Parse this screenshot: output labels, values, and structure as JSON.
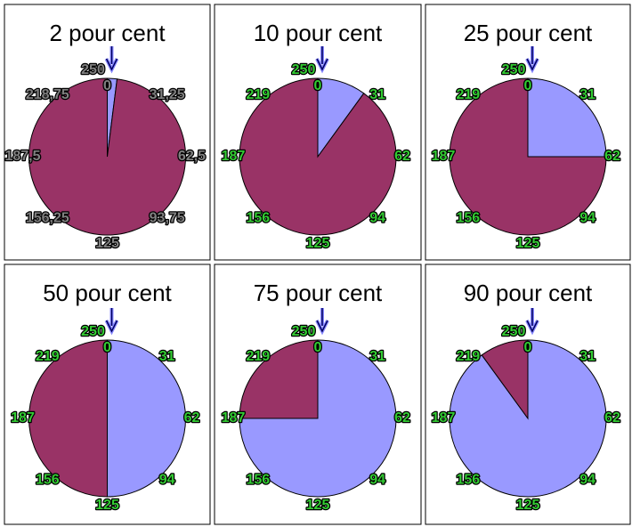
{
  "chart_data": [
    {
      "type": "pie",
      "title": "2 pour cent",
      "values": [
        2,
        98
      ],
      "colors": [
        "#9999ff",
        "#993366"
      ],
      "dial_labels": [
        "0",
        "31,25",
        "62,5",
        "93,75",
        "125",
        "156,25",
        "187,5",
        "218,75",
        "250"
      ],
      "label_color": "#808080"
    },
    {
      "type": "pie",
      "title": "10 pour cent",
      "values": [
        10,
        90
      ],
      "colors": [
        "#9999ff",
        "#993366"
      ],
      "dial_labels": [
        "0",
        "31",
        "62",
        "94",
        "125",
        "156",
        "187",
        "219",
        "250"
      ],
      "label_color": "#33cc33"
    },
    {
      "type": "pie",
      "title": "25 pour cent",
      "values": [
        25,
        75
      ],
      "colors": [
        "#9999ff",
        "#993366"
      ],
      "dial_labels": [
        "0",
        "31",
        "62",
        "94",
        "125",
        "156",
        "187",
        "219",
        "250"
      ],
      "label_color": "#33cc33"
    },
    {
      "type": "pie",
      "title": "50 pour cent",
      "values": [
        50,
        50
      ],
      "colors": [
        "#9999ff",
        "#993366"
      ],
      "dial_labels": [
        "0",
        "31",
        "62",
        "94",
        "125",
        "156",
        "187",
        "219",
        "250"
      ],
      "label_color": "#33cc33"
    },
    {
      "type": "pie",
      "title": "75 pour cent",
      "values": [
        75,
        25
      ],
      "colors": [
        "#9999ff",
        "#993366"
      ],
      "dial_labels": [
        "0",
        "31",
        "62",
        "94",
        "125",
        "156",
        "187",
        "219",
        "250"
      ],
      "label_color": "#33cc33"
    },
    {
      "type": "pie",
      "title": "90 pour cent",
      "values": [
        90,
        10
      ],
      "colors": [
        "#9999ff",
        "#993366"
      ],
      "dial_labels": [
        "0",
        "31",
        "62",
        "94",
        "125",
        "156",
        "187",
        "219",
        "250"
      ],
      "label_color": "#33cc33"
    }
  ]
}
